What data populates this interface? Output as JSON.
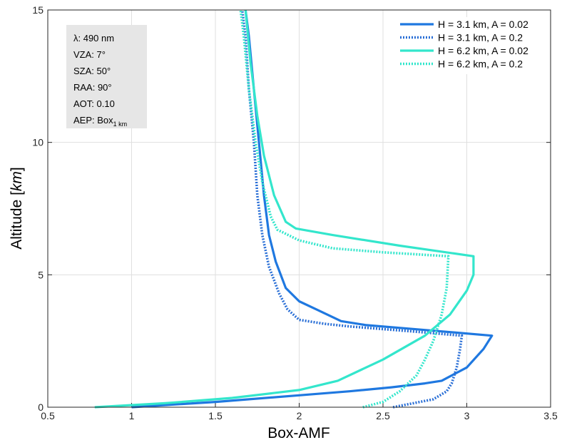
{
  "chart_data": {
    "type": "line",
    "xlabel": "Box-AMF",
    "ylabel_main": "Altitude ",
    "ylabel_unit": "km",
    "xlim": [
      0.5,
      3.5
    ],
    "ylim": [
      0,
      15
    ],
    "xticks": [
      0.5,
      1,
      1.5,
      2,
      2.5,
      3,
      3.5
    ],
    "xtick_labels": [
      "0.5",
      "1",
      "1.5",
      "2",
      "2.5",
      "3",
      "3.5"
    ],
    "yticks": [
      0,
      5,
      10,
      15
    ],
    "ytick_labels": [
      "0",
      "5",
      "10",
      "15"
    ],
    "grid": true,
    "legend_position": "top-right",
    "annotation": {
      "lines": [
        "λ: 490 nm",
        "VZA: 7°",
        "SZA: 50°",
        "RAA: 90°",
        "AOT: 0.10"
      ],
      "aep_prefix": "AEP: Box",
      "aep_subscript": "1 km"
    },
    "series": [
      {
        "name": "H = 3.1 km, A = 0.02",
        "color": "#1f78e0",
        "dash": "solid",
        "points": [
          [
            1.0,
            0.0
          ],
          [
            1.5,
            0.2
          ],
          [
            2.0,
            0.45
          ],
          [
            2.3,
            0.6
          ],
          [
            2.55,
            0.75
          ],
          [
            2.75,
            0.9
          ],
          [
            2.85,
            1.0
          ],
          [
            3.0,
            1.5
          ],
          [
            3.1,
            2.2
          ],
          [
            3.15,
            2.7
          ],
          [
            2.78,
            2.9
          ],
          [
            2.4,
            3.1
          ],
          [
            2.25,
            3.25
          ],
          [
            2.1,
            3.7
          ],
          [
            2.0,
            4.0
          ],
          [
            1.92,
            4.5
          ],
          [
            1.86,
            5.5
          ],
          [
            1.82,
            6.5
          ],
          [
            1.79,
            8.0
          ],
          [
            1.76,
            10.0
          ],
          [
            1.73,
            12.0
          ],
          [
            1.7,
            14.0
          ],
          [
            1.68,
            15.0
          ]
        ]
      },
      {
        "name": "H = 3.1 km, A = 0.2",
        "color": "#2a6fd6",
        "dash": "dotted",
        "points": [
          [
            2.56,
            0.0
          ],
          [
            2.8,
            0.3
          ],
          [
            2.88,
            0.6
          ],
          [
            2.91,
            0.9
          ],
          [
            2.94,
            1.5
          ],
          [
            2.96,
            2.2
          ],
          [
            2.97,
            2.7
          ],
          [
            2.7,
            2.85
          ],
          [
            2.5,
            2.95
          ],
          [
            2.3,
            3.05
          ],
          [
            2.15,
            3.15
          ],
          [
            2.0,
            3.3
          ],
          [
            1.93,
            3.7
          ],
          [
            1.88,
            4.3
          ],
          [
            1.82,
            5.3
          ],
          [
            1.78,
            6.5
          ],
          [
            1.75,
            8.0
          ],
          [
            1.73,
            10.0
          ],
          [
            1.7,
            12.0
          ],
          [
            1.68,
            14.0
          ],
          [
            1.66,
            15.0
          ]
        ]
      },
      {
        "name": "H = 6.2 km, A = 0.02",
        "color": "#33e6cc",
        "dash": "solid",
        "points": [
          [
            0.78,
            0.0
          ],
          [
            1.2,
            0.15
          ],
          [
            1.6,
            0.35
          ],
          [
            2.0,
            0.65
          ],
          [
            2.23,
            1.0
          ],
          [
            2.5,
            1.8
          ],
          [
            2.75,
            2.7
          ],
          [
            2.9,
            3.5
          ],
          [
            3.0,
            4.4
          ],
          [
            3.04,
            5.0
          ],
          [
            3.04,
            5.7
          ],
          [
            2.6,
            6.1
          ],
          [
            2.2,
            6.5
          ],
          [
            1.98,
            6.75
          ],
          [
            1.92,
            7.0
          ],
          [
            1.85,
            8.0
          ],
          [
            1.79,
            9.5
          ],
          [
            1.75,
            11.0
          ],
          [
            1.71,
            13.0
          ],
          [
            1.68,
            15.0
          ]
        ]
      },
      {
        "name": "H = 6.2 km, A = 0.2",
        "color": "#33e6cc",
        "dash": "dotted",
        "points": [
          [
            2.38,
            0.0
          ],
          [
            2.5,
            0.2
          ],
          [
            2.6,
            0.6
          ],
          [
            2.7,
            1.2
          ],
          [
            2.75,
            1.8
          ],
          [
            2.8,
            2.5
          ],
          [
            2.85,
            3.5
          ],
          [
            2.88,
            4.5
          ],
          [
            2.89,
            5.7
          ],
          [
            2.5,
            5.85
          ],
          [
            2.2,
            6.0
          ],
          [
            2.0,
            6.3
          ],
          [
            1.87,
            6.7
          ],
          [
            1.83,
            7.2
          ],
          [
            1.78,
            8.5
          ],
          [
            1.74,
            10.0
          ],
          [
            1.7,
            12.0
          ],
          [
            1.67,
            14.0
          ],
          [
            1.65,
            15.0
          ]
        ]
      }
    ]
  }
}
